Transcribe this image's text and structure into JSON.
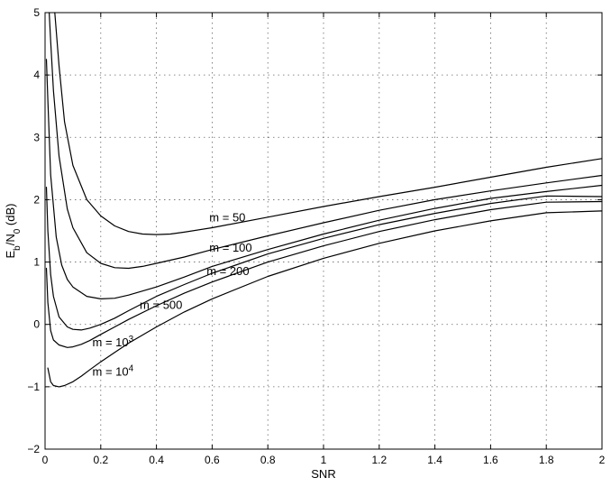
{
  "chart_data": {
    "type": "line",
    "title": "",
    "xlabel": "SNR",
    "ylabel": {
      "main": "E",
      "sub1": "b",
      "slash": "/N",
      "sub2": "0",
      "unit": " (dB)"
    },
    "xlim": [
      0,
      2
    ],
    "ylim": [
      -2,
      5
    ],
    "x_ticks": [
      0,
      0.2,
      0.4,
      0.6,
      0.8,
      1,
      1.2,
      1.4,
      1.6,
      1.8,
      2
    ],
    "x_tick_labels": [
      "0",
      "0.2",
      "0.4",
      "0.6",
      "0.8",
      "1",
      "1.2",
      "1.4",
      "1.6",
      "1.8",
      "2"
    ],
    "y_ticks": [
      -2,
      -1,
      0,
      1,
      2,
      3,
      4,
      5
    ],
    "y_tick_labels": [
      "−2",
      "−1",
      "0",
      "1",
      "2",
      "3",
      "4",
      "5"
    ],
    "grid": true,
    "legend": "none",
    "series": [
      {
        "label": {
          "base": "m = 50",
          "sup": ""
        },
        "label_at": {
          "x": 0.59,
          "y": 1.65
        },
        "x": [
          0.035,
          0.05,
          0.07,
          0.1,
          0.15,
          0.2,
          0.25,
          0.3,
          0.35,
          0.4,
          0.45,
          0.5,
          0.6,
          0.8,
          1.0,
          1.2,
          1.4,
          1.6,
          1.8,
          2.0
        ],
        "y": [
          5.0,
          4.15,
          3.25,
          2.55,
          2.0,
          1.74,
          1.58,
          1.49,
          1.45,
          1.44,
          1.45,
          1.48,
          1.55,
          1.72,
          1.89,
          2.05,
          2.2,
          2.36,
          2.52,
          2.66
        ]
      },
      {
        "label": {
          "base": "m = 100",
          "sup": ""
        },
        "label_at": {
          "x": 0.59,
          "y": 1.17
        },
        "x": [
          0.015,
          0.02,
          0.03,
          0.05,
          0.08,
          0.1,
          0.15,
          0.2,
          0.25,
          0.3,
          0.35,
          0.4,
          0.5,
          0.6,
          0.8,
          1.0,
          1.2,
          1.4,
          1.6,
          1.8,
          2.0
        ],
        "y": [
          5.0,
          4.55,
          3.75,
          2.7,
          1.85,
          1.55,
          1.15,
          0.98,
          0.91,
          0.9,
          0.93,
          0.98,
          1.08,
          1.2,
          1.42,
          1.63,
          1.83,
          2.0,
          2.14,
          2.27,
          2.39
        ]
      },
      {
        "label": {
          "base": "m = 200",
          "sup": ""
        },
        "label_at": {
          "x": 0.58,
          "y": 0.79
        },
        "x": [
          0.005,
          0.01,
          0.02,
          0.04,
          0.06,
          0.08,
          0.1,
          0.15,
          0.2,
          0.25,
          0.3,
          0.4,
          0.5,
          0.6,
          0.8,
          1.0,
          1.2,
          1.4,
          1.6,
          1.8,
          2.0
        ],
        "y": [
          4.25,
          3.6,
          2.4,
          1.4,
          0.95,
          0.72,
          0.6,
          0.45,
          0.41,
          0.42,
          0.47,
          0.6,
          0.76,
          0.93,
          1.2,
          1.45,
          1.67,
          1.86,
          2.02,
          2.13,
          2.23
        ]
      },
      {
        "label": {
          "base": "m = 500",
          "sup": ""
        },
        "label_at": {
          "x": 0.34,
          "y": 0.25
        },
        "x": [
          0.005,
          0.01,
          0.02,
          0.03,
          0.05,
          0.08,
          0.1,
          0.13,
          0.16,
          0.2,
          0.25,
          0.3,
          0.4,
          0.5,
          0.6,
          0.8,
          1.0,
          1.2,
          1.4,
          1.6,
          1.8,
          2.0
        ],
        "y": [
          2.2,
          1.5,
          0.8,
          0.45,
          0.12,
          -0.04,
          -0.08,
          -0.09,
          -0.06,
          0.0,
          0.1,
          0.22,
          0.45,
          0.64,
          0.82,
          1.13,
          1.38,
          1.6,
          1.78,
          1.94,
          2.06,
          2.05
        ]
      },
      {
        "label": {
          "base": "m = 10",
          "sup": "3"
        },
        "label_at": {
          "x": 0.17,
          "y": -0.35
        },
        "x": [
          0.005,
          0.01,
          0.02,
          0.03,
          0.05,
          0.08,
          0.1,
          0.13,
          0.16,
          0.2,
          0.25,
          0.3,
          0.4,
          0.5,
          0.6,
          0.8,
          1.0,
          1.2,
          1.4,
          1.6,
          1.8,
          2.0
        ],
        "y": [
          0.9,
          0.35,
          -0.1,
          -0.25,
          -0.33,
          -0.37,
          -0.36,
          -0.32,
          -0.26,
          -0.16,
          -0.04,
          0.08,
          0.3,
          0.5,
          0.68,
          1.0,
          1.26,
          1.49,
          1.68,
          1.84,
          1.96,
          1.97
        ]
      },
      {
        "label": {
          "base": "m = 10",
          "sup": "4"
        },
        "label_at": {
          "x": 0.17,
          "y": -0.82
        },
        "x": [
          0.01,
          0.02,
          0.03,
          0.05,
          0.07,
          0.1,
          0.13,
          0.16,
          0.2,
          0.25,
          0.3,
          0.4,
          0.5,
          0.6,
          0.8,
          1.0,
          1.2,
          1.4,
          1.6,
          1.8,
          2.0
        ],
        "y": [
          -0.7,
          -0.92,
          -0.98,
          -1.0,
          -0.98,
          -0.92,
          -0.83,
          -0.73,
          -0.6,
          -0.45,
          -0.3,
          -0.04,
          0.2,
          0.41,
          0.77,
          1.06,
          1.3,
          1.5,
          1.66,
          1.79,
          1.82
        ]
      }
    ]
  }
}
